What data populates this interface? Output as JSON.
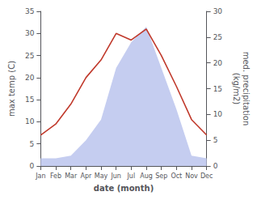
{
  "chart_data": {
    "type": "line",
    "xlabel": "date (month)",
    "ylabel": "max temp (C)",
    "y2label": "med. precipitation\n(kg/m2)",
    "categories": [
      "Jan",
      "Feb",
      "Mar",
      "Apr",
      "May",
      "Jun",
      "Jul",
      "Aug",
      "Sep",
      "Oct",
      "Nov",
      "Dec"
    ],
    "series": [
      {
        "type": "area",
        "axis": "y2",
        "color": "#c5cdf0",
        "values": [
          1.5,
          1.5,
          2,
          5,
          9,
          19,
          24,
          27,
          19,
          11,
          2,
          1.5
        ]
      },
      {
        "type": "line",
        "color": "#c0392b",
        "values": [
          7,
          9.5,
          14,
          20,
          24,
          30,
          28.5,
          31,
          25,
          18,
          10.5,
          7
        ]
      }
    ],
    "ylim": [
      0,
      35
    ],
    "yticks": [
      0,
      5,
      10,
      15,
      20,
      25,
      30,
      35
    ],
    "y2lim": [
      0,
      30
    ],
    "y2ticks": [
      0,
      5,
      10,
      15,
      20,
      25,
      30
    ],
    "grid": false
  }
}
